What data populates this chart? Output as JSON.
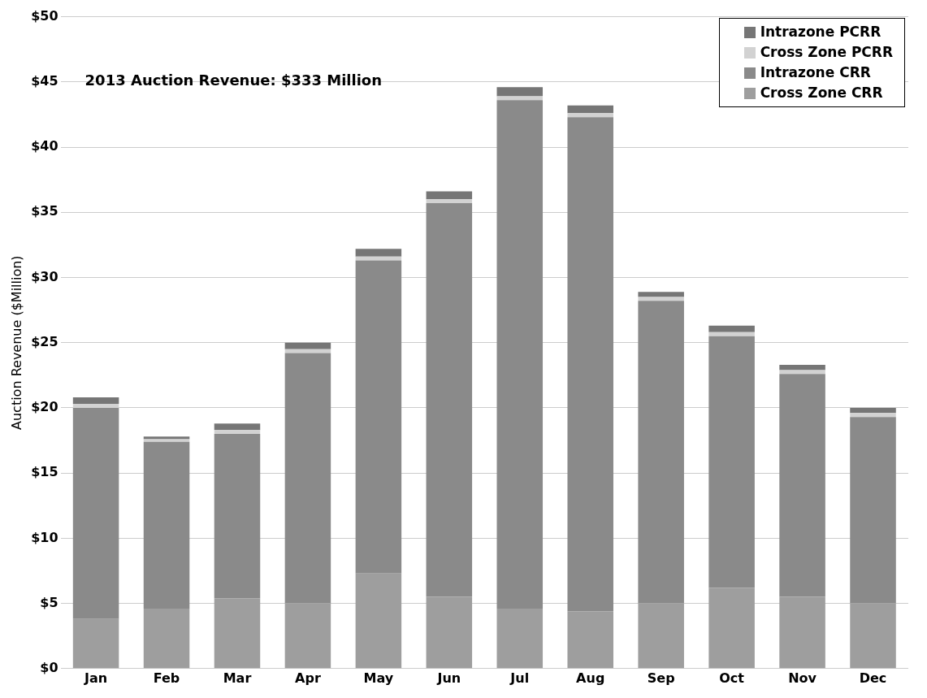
{
  "chart_data": {
    "type": "bar",
    "stacked": true,
    "categories": [
      "Jan",
      "Feb",
      "Mar",
      "Apr",
      "May",
      "Jun",
      "Jul",
      "Aug",
      "Sep",
      "Oct",
      "Nov",
      "Dec"
    ],
    "series": [
      {
        "name": "Cross Zone CRR",
        "color": "#9e9e9e",
        "values": [
          3.8,
          4.6,
          5.4,
          5,
          7.3,
          5.5,
          4.6,
          4.4,
          5,
          6.2,
          5.5,
          5
        ]
      },
      {
        "name": "Intrazone CRR",
        "color": "#8a8a8a",
        "values": [
          16.2,
          12.8,
          12.6,
          19.2,
          24,
          30.2,
          39,
          37.9,
          23.2,
          19.3,
          17.1,
          14.3
        ]
      },
      {
        "name": "Cross Zone PCRR",
        "color": "#d2d2d2",
        "values": [
          0.3,
          0.2,
          0.3,
          0.3,
          0.3,
          0.3,
          0.3,
          0.3,
          0.3,
          0.3,
          0.3,
          0.3
        ]
      },
      {
        "name": "Intrazone PCRR",
        "color": "#767676",
        "values": [
          0.5,
          0.2,
          0.5,
          0.5,
          0.6,
          0.6,
          0.7,
          0.6,
          0.4,
          0.5,
          0.4,
          0.4
        ]
      }
    ],
    "ylabel": "Auction Revenue ($Million)",
    "ylim": [
      0,
      50
    ],
    "yticks": [
      {
        "value": 0,
        "label": "$0"
      },
      {
        "value": 5,
        "label": "$5"
      },
      {
        "value": 10,
        "label": "$10"
      },
      {
        "value": 15,
        "label": "$15"
      },
      {
        "value": 20,
        "label": "$20"
      },
      {
        "value": 25,
        "label": "$25"
      },
      {
        "value": 30,
        "label": "$30"
      },
      {
        "value": 35,
        "label": "$35"
      },
      {
        "value": 40,
        "label": "$40"
      },
      {
        "value": 45,
        "label": "$45"
      },
      {
        "value": 50,
        "label": "$50"
      }
    ],
    "annotations": [
      "2013 Auction Revenue: $333 Million"
    ],
    "legend": "top right",
    "grid": "y"
  }
}
